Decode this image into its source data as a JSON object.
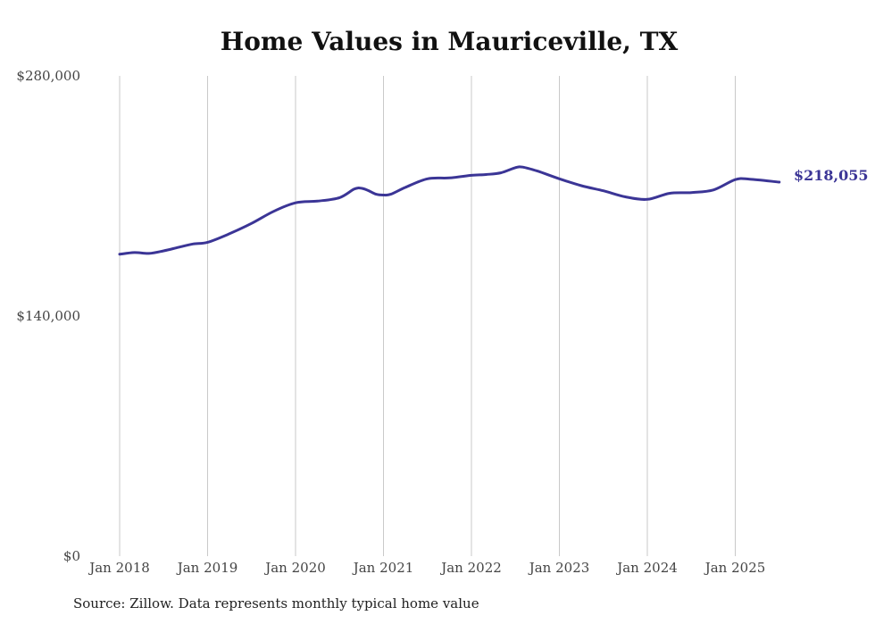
{
  "chart_data": {
    "type": "line",
    "title": "Home Values in Mauriceville, TX",
    "xlabel": "",
    "ylabel": "",
    "x_ticks": [
      "Jan 2018",
      "Jan 2019",
      "Jan 2020",
      "Jan 2021",
      "Jan 2022",
      "Jan 2023",
      "Jan 2024",
      "Jan 2025"
    ],
    "y_ticks": [
      {
        "value": 0,
        "label": "$0"
      },
      {
        "value": 140000,
        "label": "$140,000"
      },
      {
        "value": 280000,
        "label": "$280,000"
      }
    ],
    "xlim": [
      "2018-01",
      "2025-07"
    ],
    "ylim": [
      0,
      280000
    ],
    "grid": {
      "vertical": true,
      "horizontal": false
    },
    "line_color": "#3b3596",
    "end_label": "$218,055",
    "series": [
      {
        "x": [
          "2018-01",
          "2018-03",
          "2018-05",
          "2018-07",
          "2018-09",
          "2018-11",
          "2019-01",
          "2019-04",
          "2019-07",
          "2019-10",
          "2020-01",
          "2020-04",
          "2020-07",
          "2020-09",
          "2020-10",
          "2020-11",
          "2020-12",
          "2021-01",
          "2021-02",
          "2021-04",
          "2021-07",
          "2021-10",
          "2022-01",
          "2022-03",
          "2022-05",
          "2022-07",
          "2022-08",
          "2022-10",
          "2023-01",
          "2023-04",
          "2023-07",
          "2023-10",
          "2024-01",
          "2024-04",
          "2024-07",
          "2024-10",
          "2025-01",
          "2025-03",
          "2025-07"
        ],
        "values": [
          176000,
          177000,
          176500,
          178000,
          180000,
          182000,
          183000,
          188000,
          194000,
          201000,
          206000,
          207000,
          209000,
          214000,
          214500,
          213000,
          211000,
          210500,
          211000,
          215000,
          220000,
          220500,
          222000,
          222500,
          223500,
          226500,
          226800,
          224500,
          220000,
          216000,
          213000,
          209500,
          208000,
          211500,
          212000,
          213500,
          219500,
          219800,
          218055
        ]
      }
    ]
  },
  "source": "Source: Zillow. Data represents monthly typical home value"
}
